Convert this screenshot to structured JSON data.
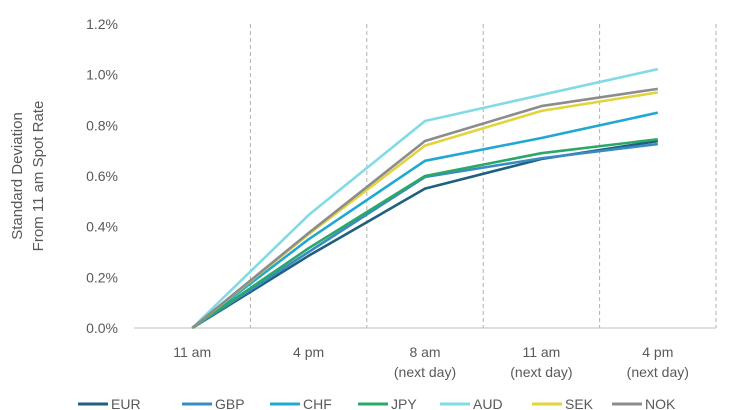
{
  "chart_data": {
    "type": "line",
    "ylabel": [
      "Standard Deviation",
      "From 11 am Spot Rate"
    ],
    "categories": [
      [
        "11 am"
      ],
      [
        "4 pm"
      ],
      [
        "8 am",
        "(next day)"
      ],
      [
        "11 am",
        "(next day)"
      ],
      [
        "4 pm",
        "(next day)"
      ]
    ],
    "ylim": [
      0,
      1.2
    ],
    "yticks": [
      "0.0%",
      "0.2%",
      "0.4%",
      "0.6%",
      "0.8%",
      "1.0%",
      "1.2%"
    ],
    "grid": "vertical dashed",
    "legend": "bottom",
    "series": [
      {
        "name": "EUR",
        "color": "#1f5f80",
        "values": [
          0,
          0.285,
          0.55,
          0.667,
          0.738
        ]
      },
      {
        "name": "GBP",
        "color": "#3a8cc0",
        "values": [
          0,
          0.3,
          0.596,
          0.67,
          0.726
        ]
      },
      {
        "name": "CHF",
        "color": "#21a8d2",
        "values": [
          0,
          0.35,
          0.66,
          0.75,
          0.85
        ]
      },
      {
        "name": "JPY",
        "color": "#2aa86a",
        "values": [
          0,
          0.315,
          0.6,
          0.69,
          0.745
        ]
      },
      {
        "name": "AUD",
        "color": "#80dbe6",
        "values": [
          0,
          0.446,
          0.817,
          0.92,
          1.022
        ]
      },
      {
        "name": "SEK",
        "color": "#e3d43a",
        "values": [
          0,
          0.37,
          0.72,
          0.857,
          0.93
        ]
      },
      {
        "name": "NOK",
        "color": "#8c8c8c",
        "values": [
          0,
          0.375,
          0.738,
          0.876,
          0.944
        ]
      }
    ]
  }
}
